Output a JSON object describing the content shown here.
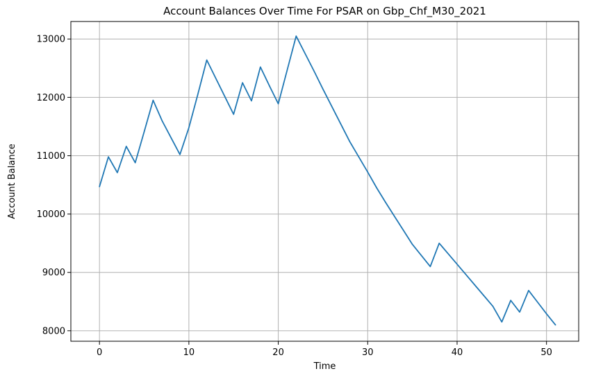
{
  "chart_data": {
    "type": "line",
    "title": "Account Balances Over Time For PSAR on Gbp_Chf_M30_2021",
    "xlabel": "Time",
    "ylabel": "Account Balance",
    "xlim": [
      -3.2,
      53.6
    ],
    "ylim": [
      7820,
      13300
    ],
    "xticks": [
      0,
      10,
      20,
      30,
      40,
      50
    ],
    "yticks": [
      8000,
      9000,
      10000,
      11000,
      12000,
      13000
    ],
    "grid": true,
    "series_color": "#1f77b4",
    "x": [
      0,
      1,
      2,
      3,
      4,
      5,
      6,
      7,
      8,
      9,
      10,
      11,
      12,
      13,
      14,
      15,
      16,
      17,
      18,
      19,
      20,
      21,
      22,
      23,
      24,
      25,
      26,
      27,
      28,
      29,
      30,
      31,
      32,
      33,
      34,
      35,
      36,
      37,
      38,
      39,
      40,
      41,
      42,
      43,
      44,
      45,
      46,
      47,
      48,
      49,
      50,
      51
    ],
    "values": [
      10470,
      10980,
      10710,
      11160,
      10880,
      11410,
      11950,
      11600,
      11310,
      11020,
      11480,
      12050,
      12640,
      12330,
      12020,
      11710,
      12250,
      11940,
      12520,
      12200,
      11890,
      12470,
      13050,
      12750,
      12450,
      12140,
      11840,
      11540,
      11240,
      10980,
      10720,
      10450,
      10200,
      9960,
      9720,
      9480,
      9290,
      9100,
      9500,
      9320,
      9140,
      8960,
      8780,
      8600,
      8420,
      8150,
      8520,
      8320,
      8690,
      8490,
      8290,
      8100
    ]
  }
}
